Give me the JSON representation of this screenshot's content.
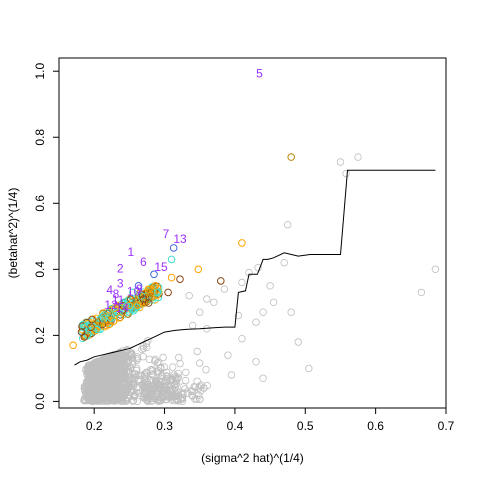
{
  "chart_data": {
    "type": "scatter",
    "title": "",
    "xlabel": "(sigma^2 hat)^(1/4)",
    "ylabel": "(betahat^2)^(1/4)",
    "xlim": [
      0.15,
      0.7
    ],
    "ylim": [
      -0.02,
      1.04
    ],
    "xticks": [
      0.2,
      0.3,
      0.4,
      0.5,
      0.6,
      0.7
    ],
    "xtick_labels": [
      "0.2",
      "0.3",
      "0.4",
      "0.5",
      "0.6",
      "0.7"
    ],
    "yticks": [
      0.0,
      0.2,
      0.4,
      0.6,
      0.8,
      1.0
    ],
    "ytick_labels": [
      "0.0",
      "0.2",
      "0.4",
      "0.6",
      "0.8",
      "1.0"
    ],
    "grid": false,
    "legend": "none",
    "colors": {
      "background_points": "#bebebe",
      "orange_points": "#ffa500",
      "dark_orange_points": "#b8860b",
      "brown_points": "#8b4513",
      "cyan_points": "#40e0d0",
      "blue_points": "#4169e1",
      "labels": "#9b30ff",
      "threshold_line": "#000000"
    },
    "threshold_line": {
      "x": [
        0.172,
        0.18,
        0.19,
        0.2,
        0.21,
        0.22,
        0.23,
        0.24,
        0.25,
        0.26,
        0.27,
        0.28,
        0.29,
        0.3,
        0.315,
        0.33,
        0.35,
        0.37,
        0.385,
        0.4,
        0.405,
        0.415,
        0.42,
        0.432,
        0.44,
        0.447,
        0.455,
        0.47,
        0.49,
        0.507,
        0.55,
        0.56,
        0.685
      ],
      "y": [
        0.11,
        0.12,
        0.125,
        0.135,
        0.14,
        0.145,
        0.15,
        0.155,
        0.16,
        0.17,
        0.18,
        0.19,
        0.2,
        0.21,
        0.215,
        0.218,
        0.22,
        0.223,
        0.225,
        0.225,
        0.33,
        0.335,
        0.385,
        0.385,
        0.43,
        0.43,
        0.435,
        0.45,
        0.44,
        0.445,
        0.445,
        0.7,
        0.7
      ]
    },
    "highlight_points": [
      {
        "x": 0.48,
        "y": 0.74,
        "color": "#b8860b"
      },
      {
        "x": 0.41,
        "y": 0.48,
        "color": "#ffa500"
      },
      {
        "x": 0.348,
        "y": 0.4,
        "color": "#ffa500"
      },
      {
        "x": 0.313,
        "y": 0.465,
        "color": "#4169e1"
      },
      {
        "x": 0.31,
        "y": 0.43,
        "color": "#40e0d0"
      },
      {
        "x": 0.31,
        "y": 0.375,
        "color": "#ffa500"
      },
      {
        "x": 0.322,
        "y": 0.37,
        "color": "#8b4513"
      },
      {
        "x": 0.38,
        "y": 0.365,
        "color": "#8b4513"
      },
      {
        "x": 0.285,
        "y": 0.385,
        "color": "#4169e1"
      },
      {
        "x": 0.287,
        "y": 0.35,
        "color": "#ffa500"
      },
      {
        "x": 0.28,
        "y": 0.33,
        "color": "#b8860b"
      },
      {
        "x": 0.305,
        "y": 0.33,
        "color": "#8b4513"
      },
      {
        "x": 0.263,
        "y": 0.35,
        "color": "#4169e1"
      },
      {
        "x": 0.255,
        "y": 0.33,
        "color": "#40e0d0"
      },
      {
        "x": 0.27,
        "y": 0.31,
        "color": "#8b4513"
      },
      {
        "x": 0.17,
        "y": 0.17,
        "color": "#ffa500"
      },
      {
        "x": 0.182,
        "y": 0.21,
        "color": "#8b4513"
      },
      {
        "x": 0.186,
        "y": 0.195,
        "color": "#8b4513"
      }
    ],
    "point_labels": [
      {
        "text": "5",
        "x": 0.435,
        "y": 0.99
      },
      {
        "text": "13",
        "x": 0.322,
        "y": 0.49
      },
      {
        "text": "7",
        "x": 0.302,
        "y": 0.505
      },
      {
        "text": "1",
        "x": 0.252,
        "y": 0.45
      },
      {
        "text": "6",
        "x": 0.27,
        "y": 0.42
      },
      {
        "text": "2",
        "x": 0.237,
        "y": 0.4
      },
      {
        "text": "15",
        "x": 0.295,
        "y": 0.405
      },
      {
        "text": "3",
        "x": 0.237,
        "y": 0.355
      },
      {
        "text": "4",
        "x": 0.222,
        "y": 0.335
      },
      {
        "text": "8",
        "x": 0.231,
        "y": 0.323
      },
      {
        "text": "9",
        "x": 0.264,
        "y": 0.338
      },
      {
        "text": "10",
        "x": 0.256,
        "y": 0.33
      },
      {
        "text": "11",
        "x": 0.234,
        "y": 0.305
      },
      {
        "text": "12",
        "x": 0.224,
        "y": 0.29
      },
      {
        "text": "14",
        "x": 0.24,
        "y": 0.28
      }
    ]
  }
}
